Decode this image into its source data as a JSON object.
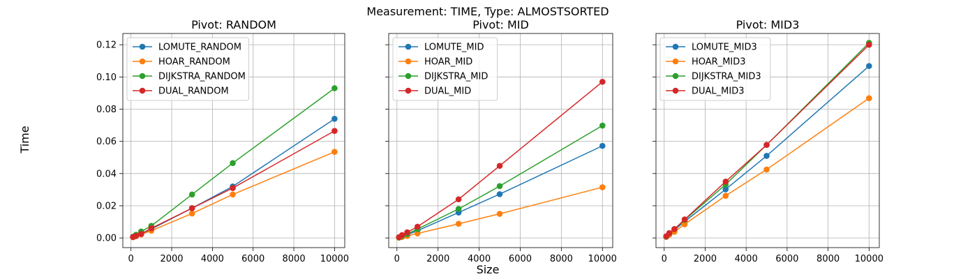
{
  "suptitle": "Measurement: TIME, Type: ALMOSTSORTED",
  "xlabel": "Size",
  "ylabel": "Time",
  "chart_data": [
    {
      "type": "line",
      "title": "Pivot: RANDOM",
      "x": [
        100,
        250,
        500,
        1000,
        3000,
        5000,
        10000
      ],
      "xlim": [
        -400,
        10500
      ],
      "ylim": [
        -0.006,
        0.127
      ],
      "xticks": [
        0,
        2000,
        4000,
        6000,
        8000,
        10000
      ],
      "xtick_labels": [
        "0",
        "2000",
        "4000",
        "6000",
        "8000",
        "10000"
      ],
      "yticks": [
        0.0,
        0.02,
        0.04,
        0.06,
        0.08,
        0.1,
        0.12
      ],
      "ytick_labels": [
        "0.00",
        "0.02",
        "0.04",
        "0.06",
        "0.08",
        "0.10",
        "0.12"
      ],
      "ytick_labels_visible": true,
      "grid": true,
      "legend": "top-left",
      "series": [
        {
          "name": "LOMUTE_RANDOM",
          "color": "#1f77b4",
          "values": [
            0.0007,
            0.0014,
            0.0025,
            0.0055,
            0.0185,
            0.032,
            0.074
          ]
        },
        {
          "name": "HOAR_RANDOM",
          "color": "#ff7f0e",
          "values": [
            0.0004,
            0.0011,
            0.0022,
            0.0045,
            0.0152,
            0.027,
            0.0535
          ]
        },
        {
          "name": "DIJKSTRA_RANDOM",
          "color": "#2ca02c",
          "values": [
            0.0008,
            0.002,
            0.004,
            0.0075,
            0.027,
            0.0465,
            0.093
          ]
        },
        {
          "name": "DUAL_RANDOM",
          "color": "#d62728",
          "values": [
            0.0006,
            0.0013,
            0.0025,
            0.006,
            0.0185,
            0.031,
            0.0665
          ]
        }
      ]
    },
    {
      "type": "line",
      "title": "Pivot: MID",
      "x": [
        100,
        250,
        500,
        1000,
        3000,
        5000,
        10000
      ],
      "xlim": [
        -400,
        10500
      ],
      "ylim": [
        -0.006,
        0.127
      ],
      "xticks": [
        0,
        2000,
        4000,
        6000,
        8000,
        10000
      ],
      "xtick_labels": [
        "0",
        "2000",
        "4000",
        "6000",
        "8000",
        "10000"
      ],
      "yticks": [
        0.0,
        0.02,
        0.04,
        0.06,
        0.08,
        0.1,
        0.12
      ],
      "ytick_labels": [
        "",
        "",
        "",
        "",
        "",
        "",
        ""
      ],
      "ytick_labels_visible": false,
      "grid": true,
      "legend": "top-left",
      "series": [
        {
          "name": "LOMUTE_MID",
          "color": "#1f77b4",
          "values": [
            0.0003,
            0.001,
            0.002,
            0.0045,
            0.0158,
            0.0272,
            0.0572
          ]
        },
        {
          "name": "HOAR_MID",
          "color": "#ff7f0e",
          "values": [
            0.0002,
            0.0006,
            0.0012,
            0.0028,
            0.0088,
            0.015,
            0.0315
          ]
        },
        {
          "name": "DIJKSTRA_MID",
          "color": "#2ca02c",
          "values": [
            0.0003,
            0.0012,
            0.0024,
            0.0055,
            0.018,
            0.0322,
            0.0698
          ]
        },
        {
          "name": "DUAL_MID",
          "color": "#d62728",
          "values": [
            0.0005,
            0.0018,
            0.0035,
            0.007,
            0.024,
            0.0448,
            0.097
          ]
        }
      ]
    },
    {
      "type": "line",
      "title": "Pivot: MID3",
      "x": [
        100,
        250,
        500,
        1000,
        3000,
        5000,
        10000
      ],
      "xlim": [
        -400,
        10500
      ],
      "ylim": [
        -0.006,
        0.127
      ],
      "xticks": [
        0,
        2000,
        4000,
        6000,
        8000,
        10000
      ],
      "xtick_labels": [
        "0",
        "2000",
        "4000",
        "6000",
        "8000",
        "10000"
      ],
      "yticks": [
        0.0,
        0.02,
        0.04,
        0.06,
        0.08,
        0.1,
        0.12
      ],
      "ytick_labels": [
        "",
        "",
        "",
        "",
        "",
        "",
        ""
      ],
      "ytick_labels_visible": false,
      "grid": true,
      "legend": "top-left",
      "series": [
        {
          "name": "LOMUTE_MID3",
          "color": "#1f77b4",
          "values": [
            0.0008,
            0.0025,
            0.005,
            0.0102,
            0.0302,
            0.051,
            0.1068
          ]
        },
        {
          "name": "HOAR_MID3",
          "color": "#ff7f0e",
          "values": [
            0.0007,
            0.002,
            0.0038,
            0.0085,
            0.0262,
            0.0425,
            0.0868
          ]
        },
        {
          "name": "DIJKSTRA_MID3",
          "color": "#2ca02c",
          "values": [
            0.0008,
            0.0028,
            0.0055,
            0.0112,
            0.0332,
            0.0578,
            0.1212
          ]
        },
        {
          "name": "DUAL_MID3",
          "color": "#d62728",
          "values": [
            0.001,
            0.003,
            0.0055,
            0.0115,
            0.035,
            0.0578,
            0.12
          ]
        }
      ]
    }
  ]
}
